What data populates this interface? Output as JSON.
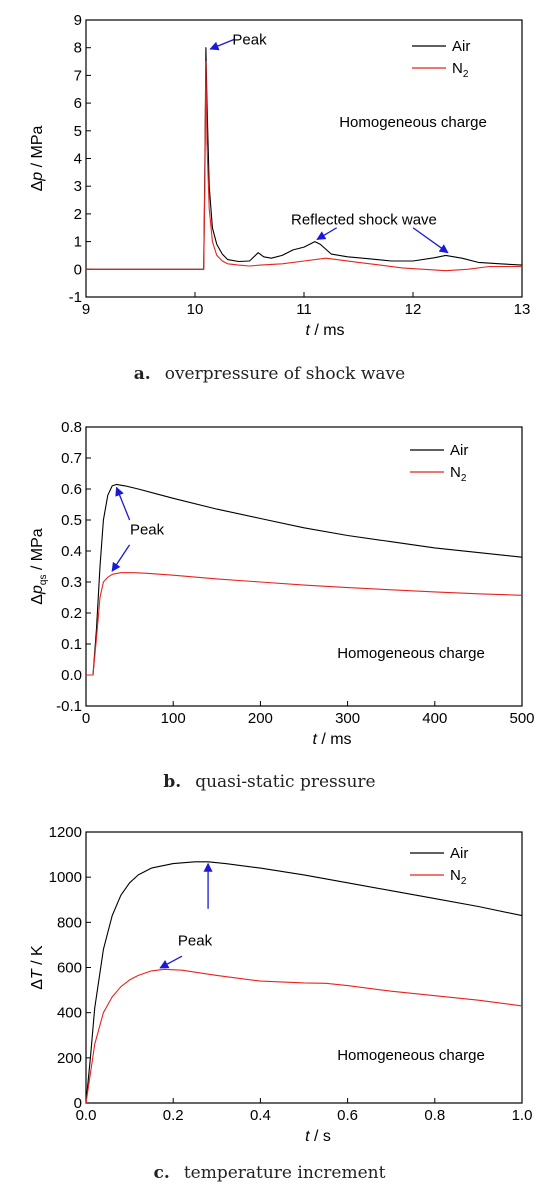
{
  "chart_data": [
    {
      "type": "line",
      "panel_letter": "a.",
      "caption": "overpressure of shock wave",
      "title": "",
      "xlabel_var": "t",
      "xlabel_unit": " / ms",
      "ylabel_delta": "Δ",
      "ylabel_var": "p",
      "ylabel_sub": "",
      "ylabel_unit": " / MPa",
      "xlim": [
        9,
        13
      ],
      "ylim": [
        -1,
        9
      ],
      "xticks": [
        9,
        10,
        11,
        12,
        13
      ],
      "yticks": [
        -1,
        0,
        1,
        2,
        3,
        4,
        5,
        6,
        7,
        8,
        9
      ],
      "tick_decimals_y": 0,
      "tick_decimals_x": 0,
      "legend": {
        "air": "Air",
        "n2_base": "N",
        "n2_sub": "2"
      },
      "condition_label": "Homogeneous charge",
      "series": [
        {
          "name": "Air",
          "color": "#000000",
          "x": [
            9.0,
            10.08,
            10.09,
            10.1,
            10.11,
            10.13,
            10.16,
            10.2,
            10.25,
            10.3,
            10.4,
            10.5,
            10.58,
            10.63,
            10.7,
            10.8,
            10.9,
            11.0,
            11.1,
            11.15,
            11.25,
            11.4,
            11.6,
            11.8,
            12.0,
            12.2,
            12.3,
            12.45,
            12.6,
            12.8,
            13.0
          ],
          "y": [
            0.0,
            0.0,
            3.5,
            8.0,
            6.0,
            3.0,
            1.5,
            0.9,
            0.55,
            0.35,
            0.28,
            0.3,
            0.6,
            0.45,
            0.4,
            0.5,
            0.7,
            0.8,
            1.0,
            0.9,
            0.55,
            0.45,
            0.38,
            0.3,
            0.3,
            0.42,
            0.5,
            0.4,
            0.25,
            0.2,
            0.15
          ]
        },
        {
          "name": "N2",
          "color": "#e8231e",
          "x": [
            9.0,
            10.08,
            10.09,
            10.1,
            10.11,
            10.13,
            10.16,
            10.2,
            10.25,
            10.3,
            10.4,
            10.5,
            10.6,
            10.8,
            11.0,
            11.2,
            11.3,
            11.5,
            11.7,
            11.9,
            12.1,
            12.3,
            12.5,
            12.7,
            12.9,
            13.0
          ],
          "y": [
            0.0,
            0.0,
            3.0,
            7.5,
            4.5,
            2.2,
            1.0,
            0.5,
            0.3,
            0.2,
            0.15,
            0.12,
            0.15,
            0.2,
            0.3,
            0.4,
            0.35,
            0.25,
            0.15,
            0.05,
            0.0,
            -0.05,
            0.0,
            0.1,
            0.1,
            0.1
          ]
        }
      ],
      "annotations": [
        {
          "text": "Peak",
          "text_x": 10.5,
          "text_y": 8.3,
          "color": "#000000",
          "arrows": [
            {
              "from": [
                10.36,
                8.3
              ],
              "to": [
                10.14,
                7.95
              ]
            }
          ]
        },
        {
          "text": "Reflected shock wave",
          "text_x": 11.55,
          "text_y": 1.8,
          "color": "#000000",
          "arrows": [
            {
              "from": [
                11.3,
                1.5
              ],
              "to": [
                11.12,
                1.08
              ]
            },
            {
              "from": [
                12.0,
                1.5
              ],
              "to": [
                12.32,
                0.6
              ]
            }
          ]
        }
      ]
    },
    {
      "type": "line",
      "panel_letter": "b.",
      "caption": "quasi-static pressure",
      "title": "",
      "xlabel_var": "t",
      "xlabel_unit": " / ms",
      "ylabel_delta": "Δ",
      "ylabel_var": "p",
      "ylabel_sub": "qs",
      "ylabel_unit": " / MPa",
      "xlim": [
        0,
        500
      ],
      "ylim": [
        -0.1,
        0.8
      ],
      "xticks": [
        0,
        100,
        200,
        300,
        400,
        500
      ],
      "yticks": [
        -0.1,
        0.0,
        0.1,
        0.2,
        0.3,
        0.4,
        0.5,
        0.6,
        0.7,
        0.8
      ],
      "tick_decimals_y": 1,
      "tick_decimals_x": 0,
      "legend": {
        "air": "Air",
        "n2_base": "N",
        "n2_sub": "2"
      },
      "condition_label": "Homogeneous charge",
      "series": [
        {
          "name": "Air",
          "color": "#000000",
          "x": [
            0,
            8,
            12,
            16,
            20,
            25,
            30,
            35,
            45,
            60,
            80,
            100,
            150,
            200,
            250,
            300,
            350,
            400,
            450,
            500
          ],
          "y": [
            0.0,
            0.0,
            0.15,
            0.35,
            0.5,
            0.58,
            0.61,
            0.615,
            0.61,
            0.6,
            0.585,
            0.57,
            0.535,
            0.505,
            0.475,
            0.45,
            0.43,
            0.41,
            0.395,
            0.38
          ]
        },
        {
          "name": "N2",
          "color": "#e8231e",
          "x": [
            0,
            8,
            12,
            16,
            20,
            25,
            30,
            40,
            55,
            70,
            100,
            150,
            200,
            250,
            300,
            350,
            400,
            450,
            500
          ],
          "y": [
            0.0,
            0.0,
            0.12,
            0.25,
            0.3,
            0.315,
            0.325,
            0.33,
            0.33,
            0.328,
            0.322,
            0.31,
            0.3,
            0.29,
            0.282,
            0.275,
            0.268,
            0.262,
            0.257
          ]
        }
      ],
      "annotations": [
        {
          "text": "Peak",
          "text_x": 70,
          "text_y": 0.47,
          "color": "#000000",
          "arrows": [
            {
              "from": [
                50,
                0.5
              ],
              "to": [
                35,
                0.605
              ]
            },
            {
              "from": [
                50,
                0.42
              ],
              "to": [
                30,
                0.335
              ]
            }
          ]
        }
      ]
    },
    {
      "type": "line",
      "panel_letter": "c.",
      "caption": "temperature increment",
      "title": "",
      "xlabel_var": "t",
      "xlabel_unit": " / s",
      "ylabel_delta": "Δ",
      "ylabel_var": "T",
      "ylabel_sub": "",
      "ylabel_unit": " / K",
      "xlim": [
        0,
        1.0
      ],
      "ylim": [
        0,
        1200
      ],
      "xticks": [
        0.0,
        0.2,
        0.4,
        0.6,
        0.8,
        1.0
      ],
      "yticks": [
        0,
        200,
        400,
        600,
        800,
        1000,
        1200
      ],
      "tick_decimals_y": 0,
      "tick_decimals_x": 1,
      "legend": {
        "air": "Air",
        "n2_base": "N",
        "n2_sub": "2"
      },
      "condition_label": "Homogeneous charge",
      "series": [
        {
          "name": "Air",
          "color": "#000000",
          "x": [
            0,
            0.01,
            0.02,
            0.04,
            0.06,
            0.08,
            0.1,
            0.12,
            0.15,
            0.2,
            0.25,
            0.28,
            0.32,
            0.4,
            0.5,
            0.6,
            0.7,
            0.8,
            0.9,
            1.0
          ],
          "y": [
            0,
            200,
            420,
            680,
            830,
            920,
            975,
            1010,
            1040,
            1060,
            1068,
            1068,
            1060,
            1040,
            1010,
            975,
            940,
            905,
            870,
            830
          ]
        },
        {
          "name": "N2",
          "color": "#e8231e",
          "x": [
            0,
            0.01,
            0.02,
            0.04,
            0.06,
            0.08,
            0.1,
            0.12,
            0.15,
            0.18,
            0.22,
            0.3,
            0.4,
            0.5,
            0.55,
            0.6,
            0.7,
            0.8,
            0.9,
            1.0
          ],
          "y": [
            0,
            130,
            260,
            400,
            470,
            515,
            545,
            565,
            585,
            592,
            588,
            565,
            540,
            532,
            530,
            520,
            495,
            475,
            455,
            430
          ]
        }
      ],
      "annotations": [
        {
          "text": "Peak",
          "text_x": 0.25,
          "text_y": 720,
          "color": "#1a1ad6",
          "arrows": [
            {
              "from": [
                0.28,
                860
              ],
              "to": [
                0.28,
                1060
              ]
            },
            {
              "from": [
                0.22,
                650
              ],
              "to": [
                0.17,
                598
              ]
            }
          ]
        }
      ]
    }
  ]
}
